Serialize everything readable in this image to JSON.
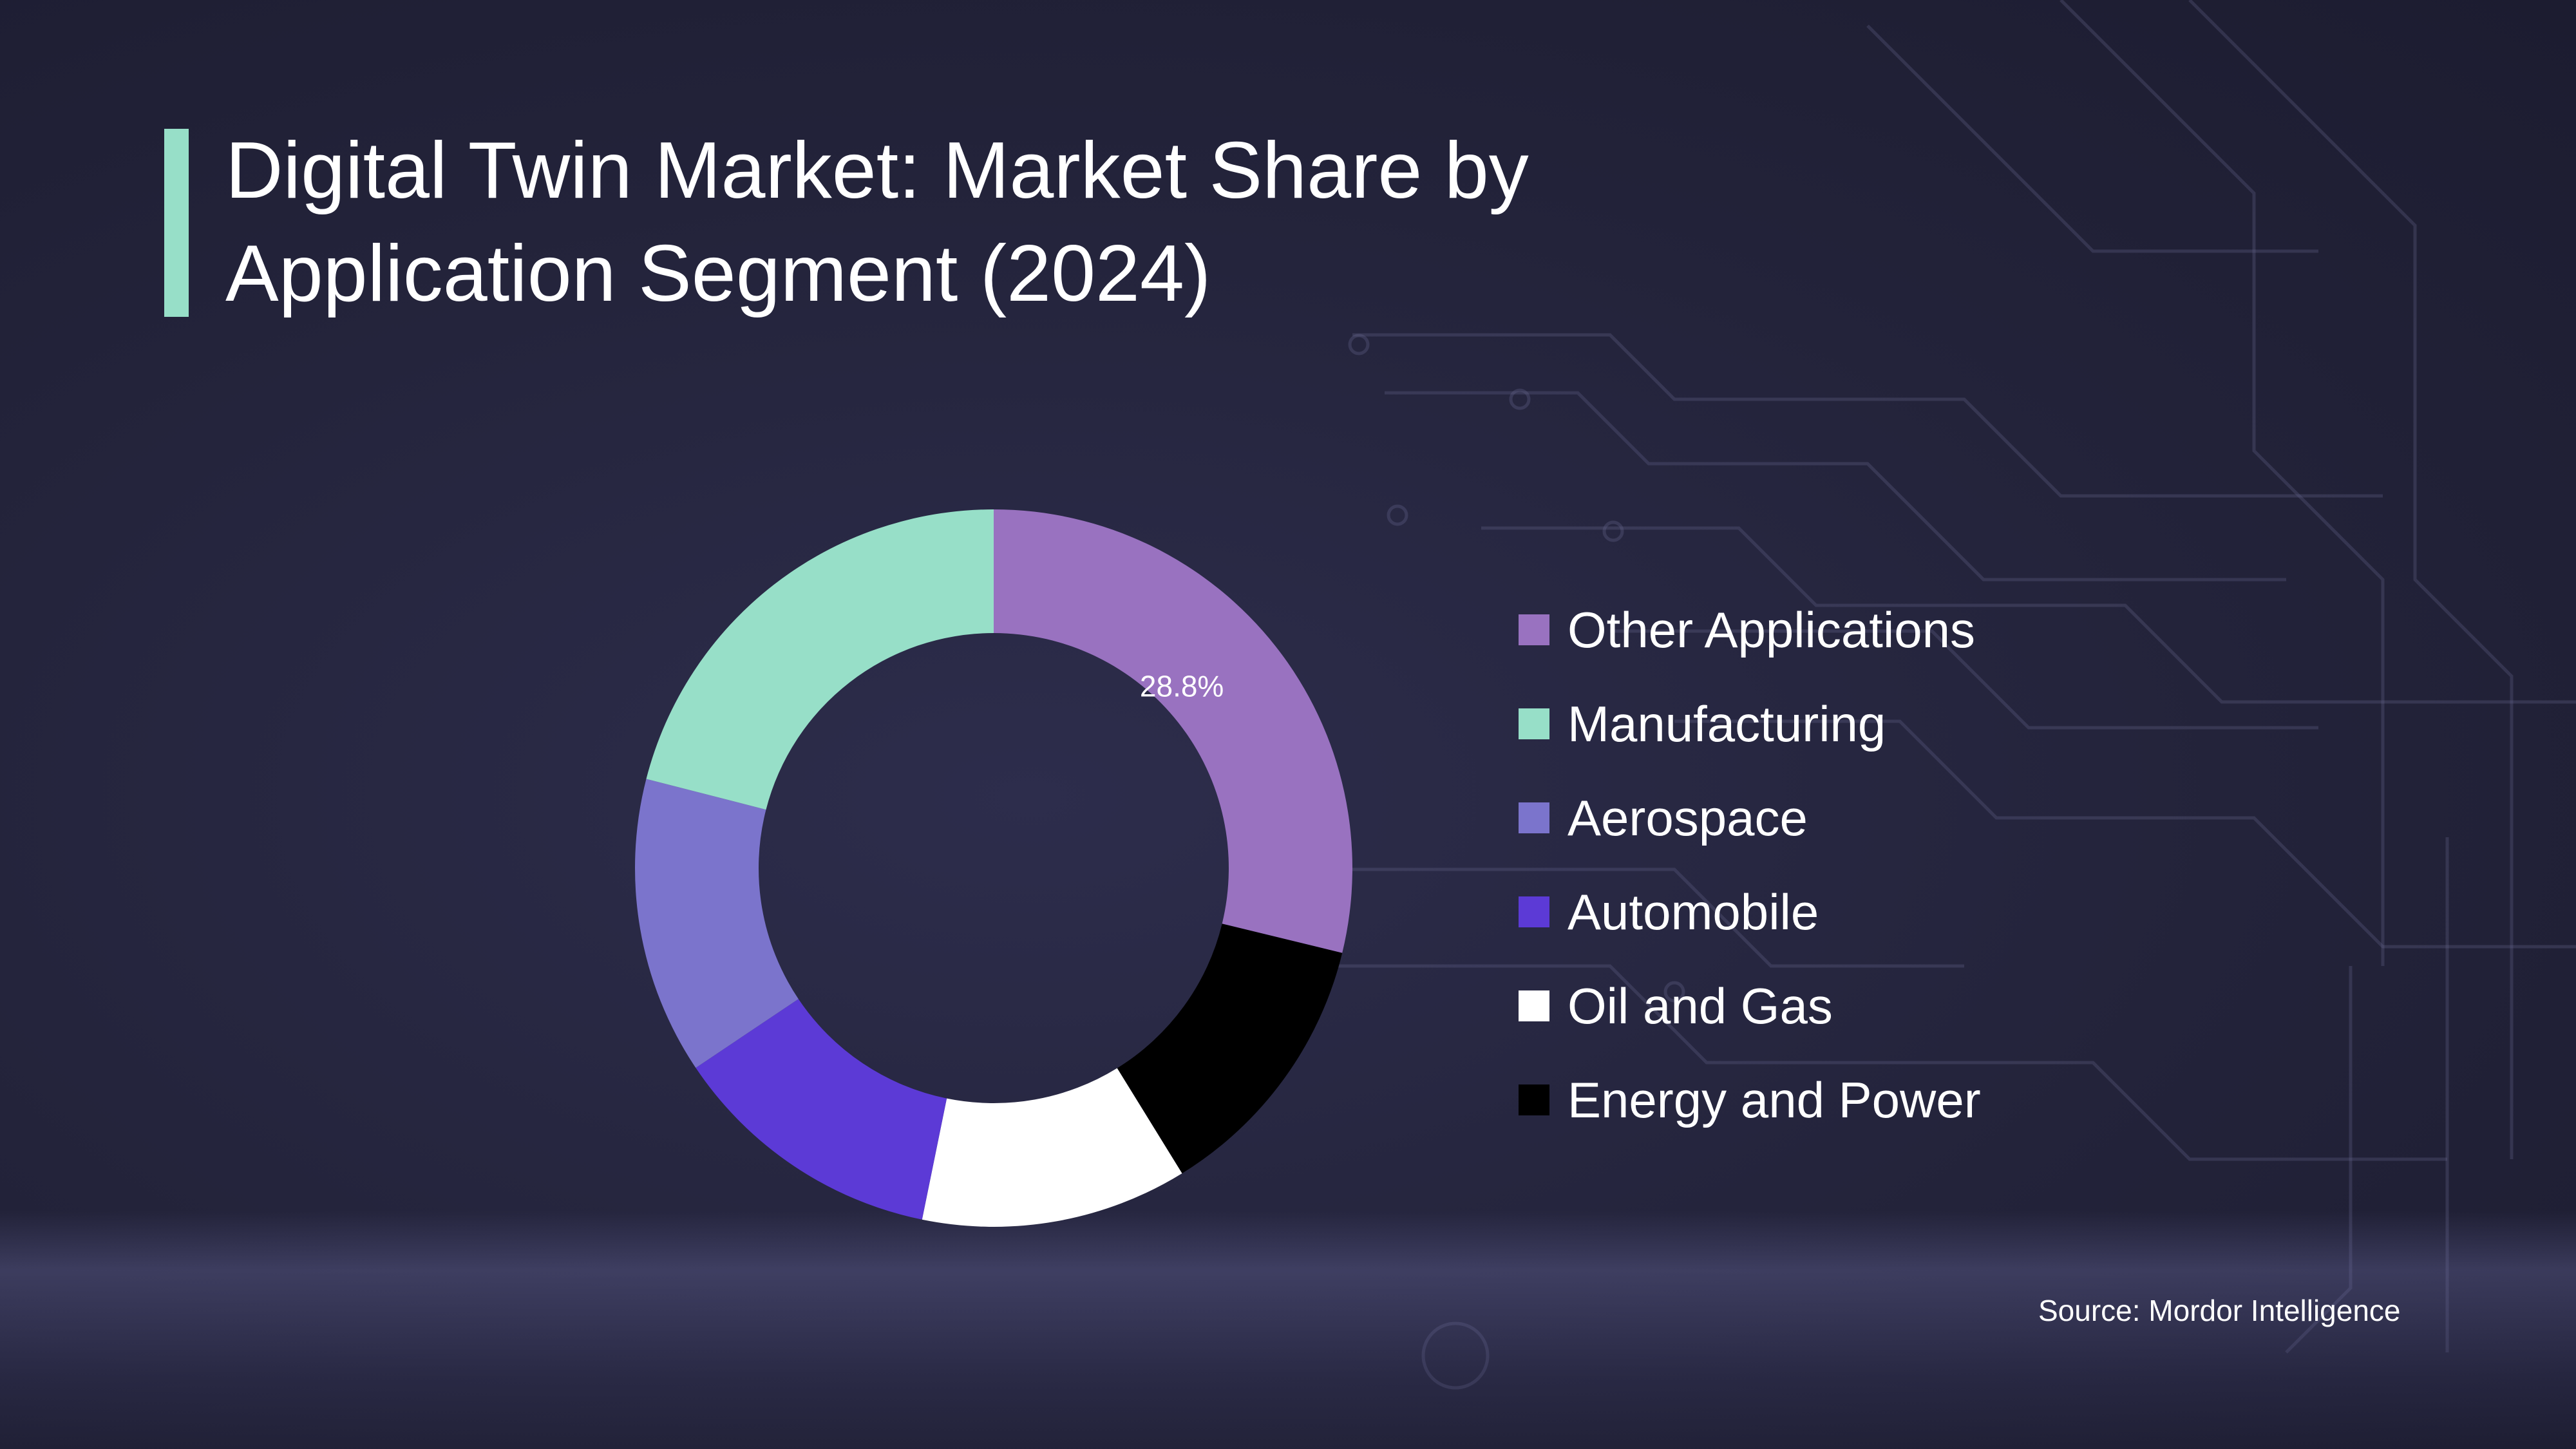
{
  "title": "Digital Twin Market: Market Share by Application Segment (2024)",
  "source": "Source: Mordor Intelligence",
  "colors": {
    "accent_bar": "#97dfc8",
    "background": "#25253d"
  },
  "chart_data": {
    "type": "pie",
    "donut": true,
    "title": "Digital Twin Market: Market Share by Application Segment (2024)",
    "legend_position": "right",
    "data_labels": [
      "28.8%"
    ],
    "series": [
      {
        "name": "Other Applications",
        "value": 28.8,
        "color": "#9972c0",
        "label": "28.8%"
      },
      {
        "name": "Energy and Power",
        "value": 12.4,
        "color": "#000000",
        "label": ""
      },
      {
        "name": "Oil and Gas",
        "value": 12.0,
        "color": "#ffffff",
        "label": ""
      },
      {
        "name": "Automobile",
        "value": 12.4,
        "color": "#5c3ad6",
        "label": ""
      },
      {
        "name": "Aerospace",
        "value": 13.4,
        "color": "#7b74cc",
        "label": ""
      },
      {
        "name": "Manufacturing",
        "value": 21.0,
        "color": "#97dfc8",
        "label": ""
      }
    ],
    "legend_order": [
      "Other Applications",
      "Manufacturing",
      "Aerospace",
      "Automobile",
      "Oil and Gas",
      "Energy and Power"
    ]
  }
}
